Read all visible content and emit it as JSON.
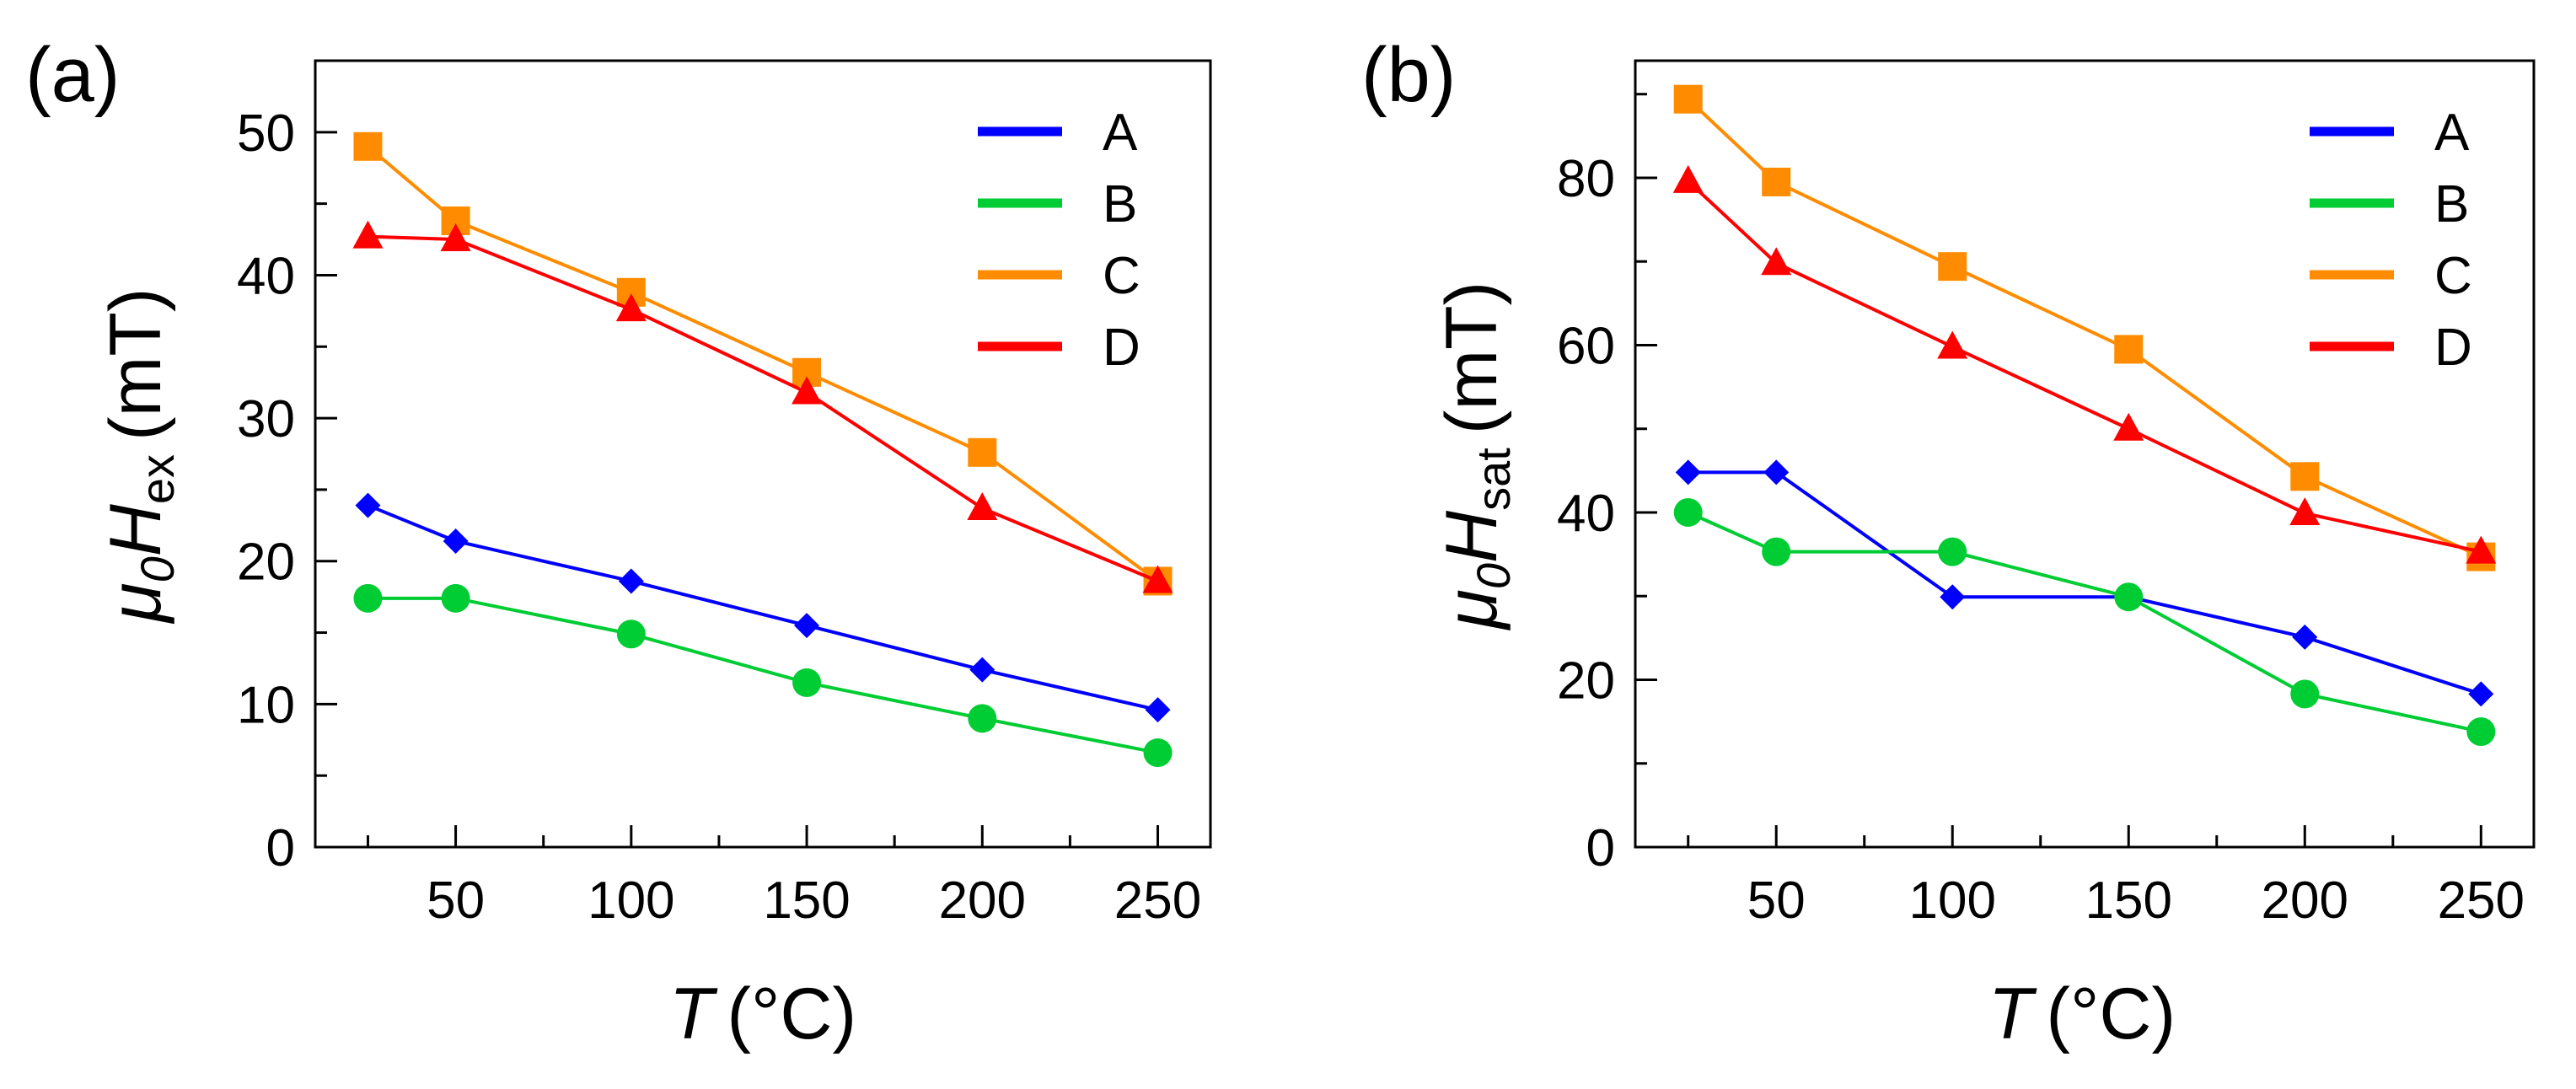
{
  "chart_data": [
    {
      "panel": "(a)",
      "type": "line",
      "xlabel": {
        "symbol": "T",
        "unit": "(°C)"
      },
      "ylabel": {
        "prefix": "μ",
        "prefix_sub": "0",
        "symbol": "H",
        "sub": "ex",
        "unit": "(mT)"
      },
      "xlim": [
        10,
        265
      ],
      "ylim": [
        0,
        55
      ],
      "xticks": [
        50,
        100,
        150,
        200,
        250
      ],
      "yticks": [
        0,
        10,
        20,
        30,
        40,
        50
      ],
      "legend_position": "top-right",
      "series": [
        {
          "name": "A",
          "color": "#0000ff",
          "marker": "diamond",
          "x": [
            25,
            50,
            100,
            150,
            200,
            250
          ],
          "y": [
            23.9,
            21.4,
            18.6,
            15.5,
            12.4,
            9.6
          ]
        },
        {
          "name": "B",
          "color": "#00cc33",
          "marker": "circle",
          "x": [
            25,
            50,
            100,
            150,
            200,
            250
          ],
          "y": [
            17.4,
            17.4,
            14.9,
            11.5,
            9.0,
            6.6
          ]
        },
        {
          "name": "C",
          "color": "#ff8c00",
          "marker": "square",
          "x": [
            25,
            50,
            100,
            150,
            200,
            250
          ],
          "y": [
            49.0,
            43.8,
            38.8,
            33.2,
            27.6,
            18.6
          ]
        },
        {
          "name": "D",
          "color": "#ff0000",
          "marker": "triangle",
          "x": [
            25,
            50,
            100,
            150,
            200,
            250
          ],
          "y": [
            42.7,
            42.5,
            37.6,
            31.8,
            23.7,
            18.6
          ]
        }
      ]
    },
    {
      "panel": "(b)",
      "type": "line",
      "xlabel": {
        "symbol": "T",
        "unit": "(°C)"
      },
      "ylabel": {
        "prefix": "μ",
        "prefix_sub": "0",
        "symbol": "H",
        "sub": "sat",
        "unit": "(mT)"
      },
      "xlim": [
        10,
        265
      ],
      "ylim": [
        0,
        94
      ],
      "xticks": [
        50,
        100,
        150,
        200,
        250
      ],
      "yticks": [
        0,
        20,
        40,
        60,
        80
      ],
      "legend_position": "top-right",
      "series": [
        {
          "name": "A",
          "color": "#0000ff",
          "marker": "diamond",
          "x": [
            25,
            50,
            100,
            150,
            200,
            250
          ],
          "y": [
            44.8,
            44.8,
            29.9,
            29.9,
            25.1,
            18.3
          ]
        },
        {
          "name": "B",
          "color": "#00cc33",
          "marker": "circle",
          "x": [
            25,
            50,
            100,
            150,
            200,
            250
          ],
          "y": [
            40.0,
            35.3,
            35.3,
            29.9,
            18.3,
            13.8
          ]
        },
        {
          "name": "C",
          "color": "#ff8c00",
          "marker": "square",
          "x": [
            25,
            50,
            100,
            150,
            200,
            250
          ],
          "y": [
            89.4,
            79.5,
            69.4,
            59.5,
            44.3,
            34.7
          ]
        },
        {
          "name": "D",
          "color": "#ff0000",
          "marker": "triangle",
          "x": [
            25,
            50,
            100,
            150,
            200,
            250
          ],
          "y": [
            79.6,
            69.8,
            59.8,
            50.0,
            39.9,
            35.3
          ]
        }
      ]
    }
  ]
}
